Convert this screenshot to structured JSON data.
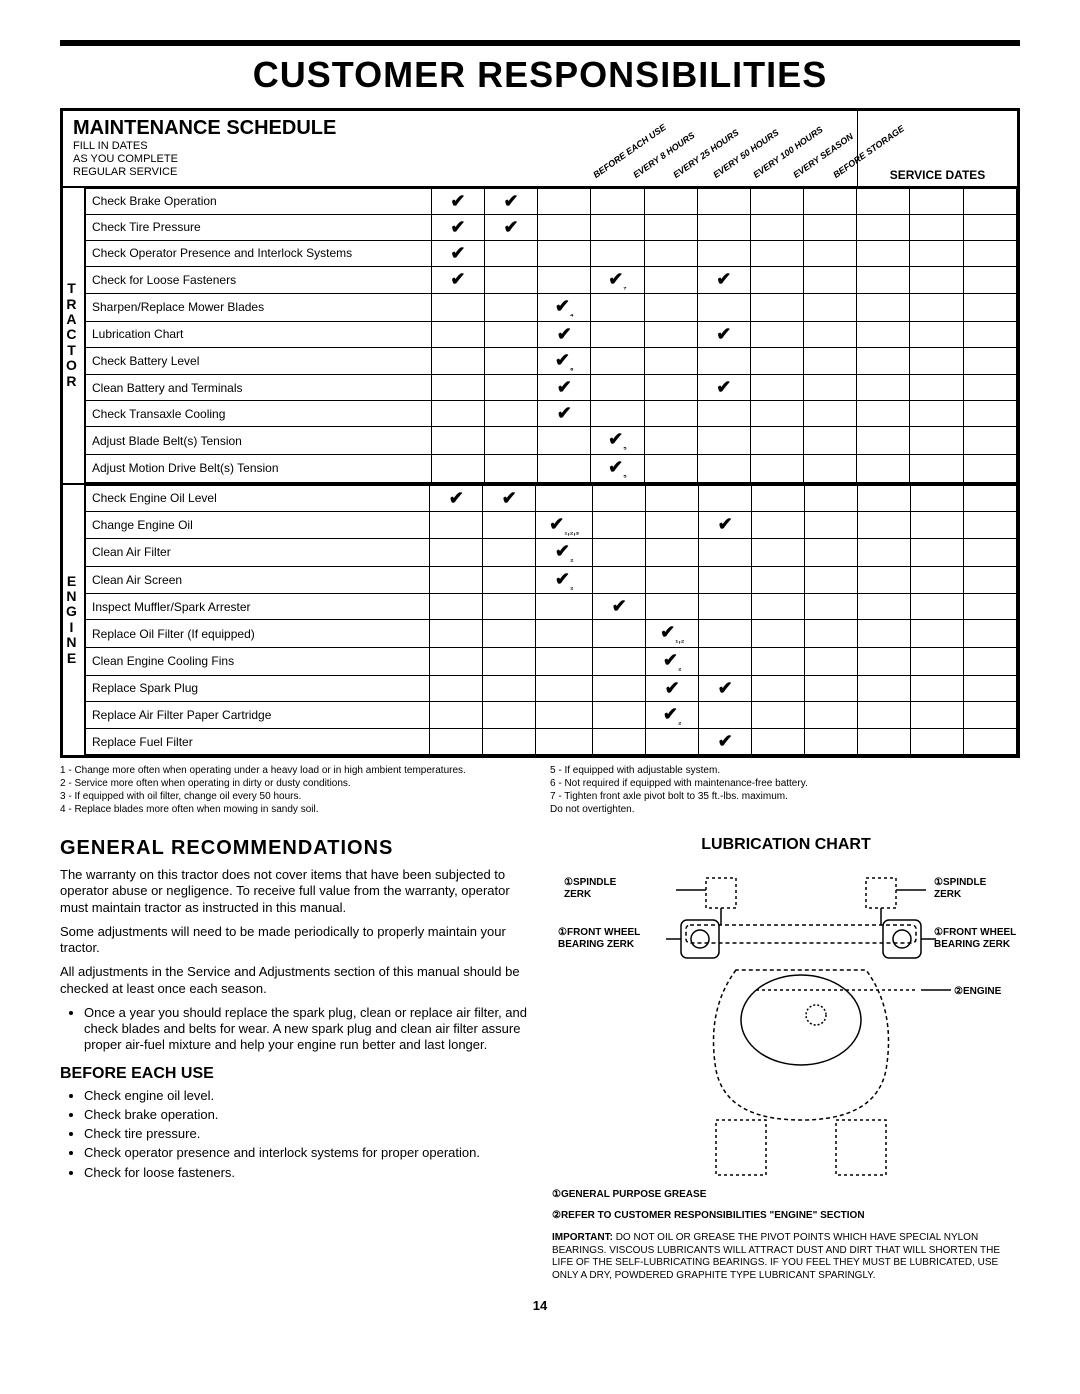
{
  "title": "CUSTOMER RESPONSIBILITIES",
  "schedule": {
    "heading": "MAINTENANCE SCHEDULE",
    "sub1": "FILL IN DATES",
    "sub2": "AS YOU COMPLETE",
    "sub3": "REGULAR SERVICE",
    "diag_headers": [
      "BEFORE EACH USE",
      "EVERY 8 HOURS",
      "EVERY 25 HOURS",
      "EVERY 50 HOURS",
      "EVERY 100 HOURS",
      "EVERY SEASON",
      "BEFORE STORAGE"
    ],
    "service_dates": "SERVICE DATES",
    "sections": [
      {
        "vlabel": "TRACTOR",
        "rows": [
          {
            "task": "Check Brake Operation",
            "marks": [
              "✔",
              "✔",
              "",
              "",
              "",
              "",
              ""
            ]
          },
          {
            "task": "Check Tire Pressure",
            "marks": [
              "✔",
              "✔",
              "",
              "",
              "",
              "",
              ""
            ]
          },
          {
            "task": "Check Operator Presence and Interlock Systems",
            "marks": [
              "✔",
              "",
              "",
              "",
              "",
              "",
              ""
            ]
          },
          {
            "task": "Check for Loose Fasteners",
            "marks": [
              "✔",
              "",
              "",
              "✔₇",
              "",
              "✔",
              ""
            ]
          },
          {
            "task": "Sharpen/Replace Mower Blades",
            "marks": [
              "",
              "",
              "✔₄",
              "",
              "",
              "",
              ""
            ]
          },
          {
            "task": "Lubrication Chart",
            "marks": [
              "",
              "",
              "✔",
              "",
              "",
              "✔",
              ""
            ]
          },
          {
            "task": "Check Battery Level",
            "marks": [
              "",
              "",
              "✔₆",
              "",
              "",
              "",
              ""
            ]
          },
          {
            "task": "Clean Battery and Terminals",
            "marks": [
              "",
              "",
              "✔",
              "",
              "",
              "✔",
              ""
            ]
          },
          {
            "task": "Check Transaxle Cooling",
            "marks": [
              "",
              "",
              "✔",
              "",
              "",
              "",
              ""
            ]
          },
          {
            "task": "Adjust Blade Belt(s) Tension",
            "marks": [
              "",
              "",
              "",
              "✔₅",
              "",
              "",
              ""
            ]
          },
          {
            "task": "Adjust Motion Drive Belt(s) Tension",
            "marks": [
              "",
              "",
              "",
              "✔₅",
              "",
              "",
              ""
            ]
          }
        ]
      },
      {
        "vlabel": "ENGINE",
        "rows": [
          {
            "task": "Check Engine Oil Level",
            "marks": [
              "✔",
              "✔",
              "",
              "",
              "",
              "",
              ""
            ]
          },
          {
            "task": "Change Engine Oil",
            "marks": [
              "",
              "",
              "✔₁,₂,₃",
              "",
              "",
              "✔",
              ""
            ]
          },
          {
            "task": "Clean Air Filter",
            "marks": [
              "",
              "",
              "✔₂",
              "",
              "",
              "",
              ""
            ]
          },
          {
            "task": "Clean Air Screen",
            "marks": [
              "",
              "",
              "✔₂",
              "",
              "",
              "",
              ""
            ]
          },
          {
            "task": "Inspect Muffler/Spark Arrester",
            "marks": [
              "",
              "",
              "",
              "✔",
              "",
              "",
              ""
            ]
          },
          {
            "task": "Replace Oil Filter (If equipped)",
            "marks": [
              "",
              "",
              "",
              "",
              "✔₁,₂",
              "",
              ""
            ]
          },
          {
            "task": "Clean Engine Cooling Fins",
            "marks": [
              "",
              "",
              "",
              "",
              "✔₂",
              "",
              ""
            ]
          },
          {
            "task": "Replace Spark Plug",
            "marks": [
              "",
              "",
              "",
              "",
              "✔",
              "✔",
              ""
            ]
          },
          {
            "task": "Replace Air Filter Paper Cartridge",
            "marks": [
              "",
              "",
              "",
              "",
              "✔₂",
              "",
              ""
            ]
          },
          {
            "task": "Replace Fuel Filter",
            "marks": [
              "",
              "",
              "",
              "",
              "",
              "✔",
              ""
            ]
          }
        ]
      }
    ]
  },
  "footnotes_left": [
    "1 - Change more often when operating under a heavy load or in high ambient temperatures.",
    "2 - Service more often when operating in dirty or dusty conditions.",
    "3 - If equipped with oil filter, change oil every 50 hours.",
    "4 - Replace blades more often when mowing in sandy soil."
  ],
  "footnotes_right": [
    "5 - If equipped with adjustable system.",
    "6 - Not required if equipped with maintenance-free battery.",
    "7 - Tighten front axle pivot bolt to 35 ft.-lbs. maximum.",
    "    Do not overtighten."
  ],
  "general": {
    "heading": "GENERAL RECOMMENDATIONS",
    "p1": "The warranty on this tractor does not cover items that have been subjected to operator abuse or negligence. To receive full value from the warranty, operator must maintain tractor as instructed in this manual.",
    "p2": "Some adjustments will need to be made periodically to properly maintain your tractor.",
    "p3": "All adjustments in the Service and Adjustments section of this manual should be checked at least once each season.",
    "bullet1": "Once a year you should replace the spark plug, clean or replace air filter, and check blades and belts for wear. A new spark plug and clean air filter assure proper air-fuel mixture and help your engine run better and last longer.",
    "before_heading": "BEFORE EACH USE",
    "before_items": [
      "Check engine oil level.",
      "Check brake operation.",
      "Check tire pressure.",
      "Check operator presence and interlock systems for proper operation.",
      "Check for loose fasteners."
    ]
  },
  "lube": {
    "heading": "LUBRICATION CHART",
    "labels": {
      "spindle_l": "①SPINDLE ZERK",
      "spindle_r": "①SPINDLE ZERK",
      "front_l": "①FRONT WHEEL BEARING ZERK",
      "front_r": "①FRONT WHEEL BEARING ZERK",
      "engine": "②ENGINE"
    },
    "note1": "①GENERAL PURPOSE GREASE",
    "note2": "②REFER TO CUSTOMER RESPONSIBILITIES \"ENGINE\" SECTION",
    "important_label": "IMPORTANT:",
    "important": " DO NOT OIL OR GREASE THE PIVOT POINTS WHICH HAVE SPECIAL NYLON BEARINGS. VISCOUS LUBRICANTS WILL ATTRACT DUST AND DIRT THAT WILL SHORTEN THE LIFE OF THE SELF-LUBRICATING BEARINGS. IF YOU FEEL THEY MUST BE LUBRICATED, USE ONLY A DRY, POWDERED GRAPHITE TYPE LUBRICANT SPARINGLY."
  },
  "page": "14"
}
